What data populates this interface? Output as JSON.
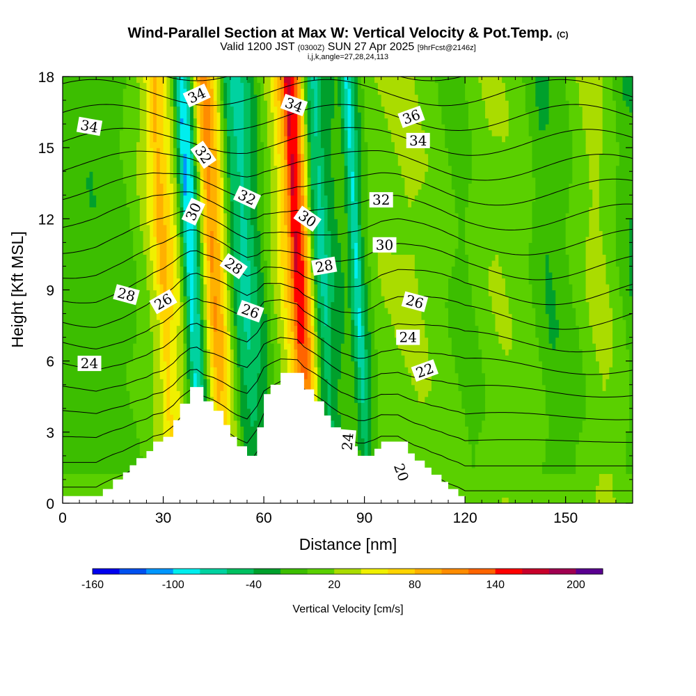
{
  "header": {
    "title": "Wind-Parallel Section at Max W: Vertical Velocity & Pot.Temp.",
    "title_mark": "(C)",
    "valid_prefix": "Valid 1200 JST",
    "valid_utc": "(0300Z)",
    "valid_date": "SUN 27 Apr 2025",
    "forecast": "[9hrFcst@2146z]",
    "indices": "i,j,k,angle=27,28,24,113"
  },
  "chart_data": {
    "type": "heatmap",
    "xlabel": "Distance [nm]",
    "ylabel": "Height [Kft MSL]",
    "xlim": [
      0,
      170
    ],
    "ylim": [
      0,
      18
    ],
    "xticks": [
      0,
      30,
      60,
      90,
      120,
      150
    ],
    "yticks": [
      0,
      3,
      6,
      9,
      12,
      15,
      18
    ],
    "colorbar": {
      "label": "Vertical Velocity [cm/s]",
      "tick_labels": [
        "-160",
        "-100",
        "-40",
        "20",
        "80",
        "140",
        "200"
      ],
      "tick_values": [
        -160,
        -100,
        -40,
        20,
        80,
        140,
        200
      ],
      "range": [
        -160,
        220
      ],
      "colors": [
        "#0000ee",
        "#0050f0",
        "#0096ff",
        "#00eeee",
        "#00d2a0",
        "#00c060",
        "#00a02c",
        "#3cbe00",
        "#5ad000",
        "#aadc00",
        "#f0f000",
        "#ffd400",
        "#ffb000",
        "#ff8c00",
        "#ff6400",
        "#ff0000",
        "#c8002a",
        "#a00050",
        "#5a0090"
      ]
    },
    "vertical_velocity_columns": {
      "description": "approximate dominant vertical velocity (cm/s) per distance band",
      "x": [
        0,
        5,
        10,
        15,
        20,
        25,
        28,
        30,
        33,
        35,
        37,
        38,
        40,
        43,
        45,
        47,
        49,
        52,
        55,
        58,
        60,
        62,
        65,
        68,
        70,
        72,
        74,
        76,
        78,
        80,
        83,
        85,
        87,
        88,
        90,
        93,
        95,
        100,
        105,
        110,
        115,
        120,
        125,
        130,
        135,
        140,
        145,
        150,
        155,
        160,
        165,
        170
      ],
      "w": [
        -10,
        -10,
        -15,
        -10,
        -5,
        20,
        50,
        90,
        60,
        30,
        -50,
        -100,
        -80,
        60,
        110,
        90,
        40,
        -50,
        -70,
        -40,
        -20,
        10,
        40,
        90,
        170,
        140,
        60,
        -40,
        -70,
        -40,
        -20,
        -10,
        -60,
        -90,
        -30,
        10,
        15,
        20,
        25,
        15,
        5,
        -10,
        10,
        20,
        15,
        5,
        -20,
        -10,
        10,
        30,
        10,
        -20
      ]
    },
    "potential_temperature_contours": {
      "interval": 1,
      "labeled_values": [
        20,
        22,
        24,
        26,
        28,
        30,
        32,
        34,
        36
      ]
    },
    "terrain_kft": {
      "x": [
        0,
        10,
        12,
        15,
        18,
        20,
        22,
        25,
        27,
        30,
        33,
        35,
        38,
        40,
        42,
        45,
        48,
        50,
        52,
        55,
        58,
        60,
        62,
        65,
        68,
        70,
        72,
        75,
        78,
        80,
        83,
        85,
        88,
        90,
        93,
        95,
        98,
        100,
        103,
        105,
        108,
        110,
        113,
        115,
        118,
        120
      ],
      "h": [
        0.3,
        0.3,
        0.6,
        1.0,
        1.3,
        1.6,
        1.9,
        2.2,
        2.6,
        2.8,
        3.5,
        4.2,
        4.9,
        4.9,
        4.3,
        3.9,
        3.3,
        2.8,
        2.4,
        2.0,
        3.2,
        4.6,
        5.0,
        5.5,
        5.5,
        5.5,
        4.8,
        4.3,
        3.7,
        3.2,
        2.6,
        2.4,
        2.0,
        2.0,
        2.3,
        2.6,
        2.6,
        2.6,
        2.1,
        1.8,
        1.5,
        1.2,
        0.9,
        0.6,
        0.3,
        0.0
      ]
    }
  }
}
